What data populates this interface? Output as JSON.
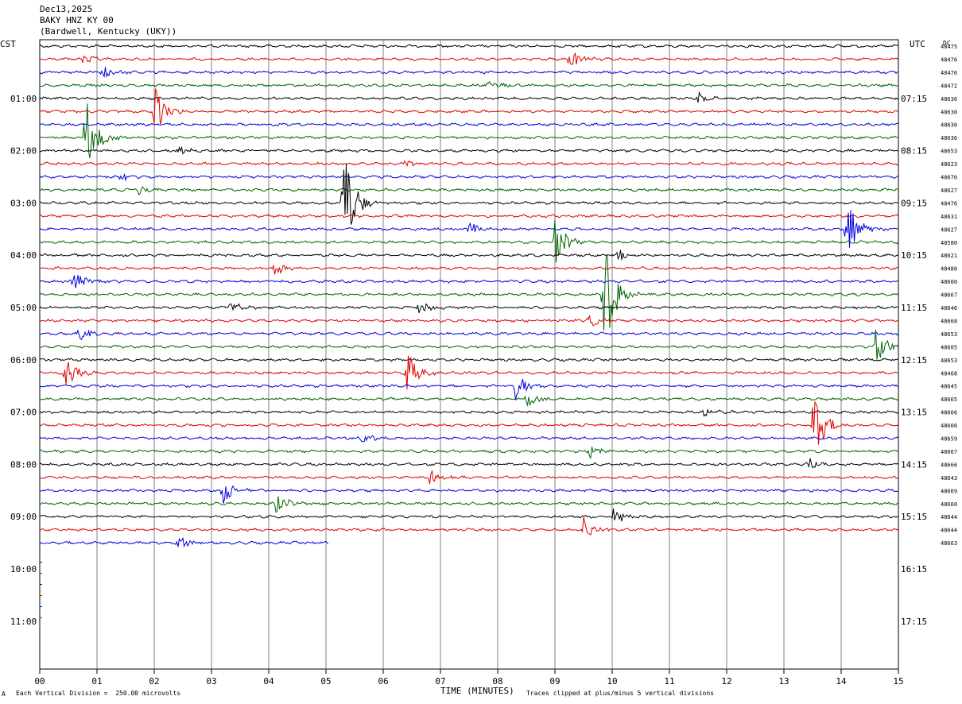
{
  "header": {
    "date": "Dec13,2025",
    "station": "BAKY HNZ KY 00",
    "location": "(Bardwell, Kentucky (UKY))"
  },
  "axes": {
    "left_tz": "CST",
    "right_tz": "UTC",
    "dc_label": "DC",
    "xlabel": "TIME (MINUTES)",
    "footer_left": "Each Vertical Division =  250.00 microvolts",
    "footer_right": "Traces clipped at plus/minus 5 vertical divisions",
    "footer_mark": "A"
  },
  "colors": {
    "trace_cycle": [
      "#000000",
      "#e00000",
      "#0000e0",
      "#006400"
    ],
    "grid": "#808080"
  },
  "chart_data": {
    "type": "line",
    "title": "BAKY HNZ KY 00",
    "xlabel": "TIME (MINUTES)",
    "xlim": [
      0,
      15
    ],
    "x_ticks": [
      "00",
      "01",
      "02",
      "03",
      "04",
      "05",
      "06",
      "07",
      "08",
      "09",
      "10",
      "11",
      "12",
      "13",
      "14",
      "15"
    ],
    "left_hour_labels": [
      "01:00",
      "02:00",
      "03:00",
      "04:00",
      "05:00",
      "06:00",
      "07:00",
      "08:00",
      "09:00",
      "10:00",
      "11:00"
    ],
    "right_hour_labels": [
      "07:15",
      "08:15",
      "09:15",
      "10:15",
      "11:15",
      "12:15",
      "13:15",
      "14:15",
      "15:15",
      "16:15",
      "17:15"
    ],
    "traces_per_hour": 4,
    "trace_minutes": 15,
    "dc_offsets": [
      "48475",
      "48476",
      "48476",
      "48472",
      "48636",
      "48630",
      "48630",
      "48636",
      "48653",
      "48623",
      "48670",
      "48627",
      "48476",
      "48631",
      "48627",
      "48580",
      "48621",
      "48480",
      "48660",
      "48667",
      "48646",
      "48668",
      "48653",
      "48605",
      "48653",
      "48468",
      "48645",
      "48665",
      "48666",
      "48666",
      "48659",
      "48667",
      "48666",
      "48643",
      "48669",
      "48660",
      "48644",
      "48644",
      "48663"
    ],
    "last_trace_end_minutes": 5.05,
    "events": [
      {
        "trace": 1,
        "minute": 0.72,
        "amp": 0.5
      },
      {
        "trace": 1,
        "minute": 9.25,
        "amp": 0.9
      },
      {
        "trace": 2,
        "minute": 1.1,
        "amp": 0.5
      },
      {
        "trace": 3,
        "minute": 7.8,
        "amp": 0.5
      },
      {
        "trace": 4,
        "minute": 11.5,
        "amp": 0.5
      },
      {
        "trace": 5,
        "minute": 2.0,
        "amp": 2.0
      },
      {
        "trace": 7,
        "minute": 0.8,
        "amp": 3.5
      },
      {
        "trace": 8,
        "minute": 2.4,
        "amp": 0.4
      },
      {
        "trace": 9,
        "minute": 6.3,
        "amp": 0.5
      },
      {
        "trace": 10,
        "minute": 1.4,
        "amp": 0.5
      },
      {
        "trace": 11,
        "minute": 1.7,
        "amp": 0.5
      },
      {
        "trace": 12,
        "minute": 5.3,
        "amp": 5.0
      },
      {
        "trace": 14,
        "minute": 7.5,
        "amp": 0.6
      },
      {
        "trace": 14,
        "minute": 14.1,
        "amp": 2.5
      },
      {
        "trace": 15,
        "minute": 9.0,
        "amp": 2.0
      },
      {
        "trace": 16,
        "minute": 10.1,
        "amp": 0.5
      },
      {
        "trace": 17,
        "minute": 4.1,
        "amp": 0.6
      },
      {
        "trace": 18,
        "minute": 0.6,
        "amp": 0.8
      },
      {
        "trace": 19,
        "minute": 9.85,
        "amp": 5.0
      },
      {
        "trace": 20,
        "minute": 3.3,
        "amp": 0.6
      },
      {
        "trace": 20,
        "minute": 6.6,
        "amp": 0.7
      },
      {
        "trace": 21,
        "minute": 9.6,
        "amp": 0.6
      },
      {
        "trace": 22,
        "minute": 0.7,
        "amp": 0.7
      },
      {
        "trace": 23,
        "minute": 14.6,
        "amp": 1.5
      },
      {
        "trace": 25,
        "minute": 0.45,
        "amp": 1.3
      },
      {
        "trace": 25,
        "minute": 6.4,
        "amp": 2.0
      },
      {
        "trace": 26,
        "minute": 8.3,
        "amp": 1.2
      },
      {
        "trace": 27,
        "minute": 8.5,
        "amp": 0.8
      },
      {
        "trace": 28,
        "minute": 11.6,
        "amp": 0.5
      },
      {
        "trace": 29,
        "minute": 13.5,
        "amp": 3.0
      },
      {
        "trace": 30,
        "minute": 5.6,
        "amp": 0.6
      },
      {
        "trace": 31,
        "minute": 9.6,
        "amp": 0.6
      },
      {
        "trace": 32,
        "minute": 13.4,
        "amp": 0.6
      },
      {
        "trace": 33,
        "minute": 6.8,
        "amp": 0.7
      },
      {
        "trace": 34,
        "minute": 3.2,
        "amp": 1.2
      },
      {
        "trace": 35,
        "minute": 4.1,
        "amp": 1.0
      },
      {
        "trace": 36,
        "minute": 10.0,
        "amp": 0.7
      },
      {
        "trace": 37,
        "minute": 9.5,
        "amp": 1.0
      },
      {
        "trace": 38,
        "minute": 2.4,
        "amp": 0.6
      }
    ]
  }
}
